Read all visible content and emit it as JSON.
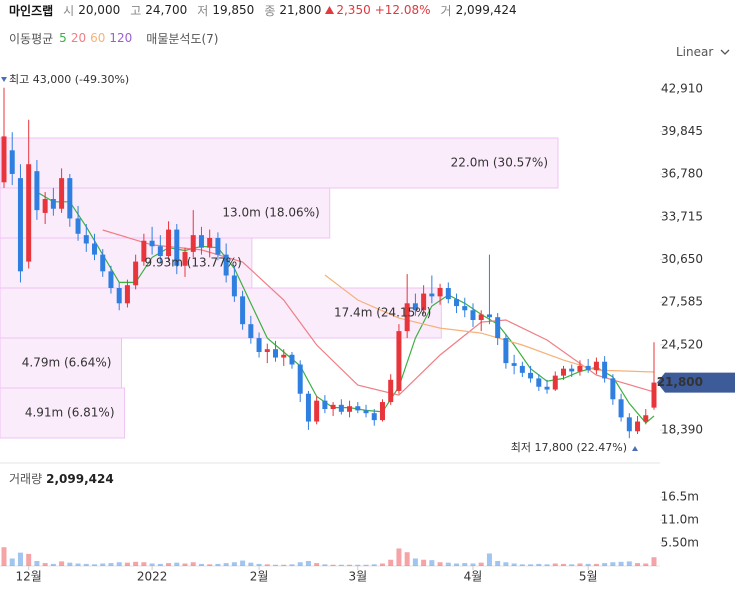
{
  "header": {
    "name": "마인즈랩",
    "open_label": "시",
    "open": "20,000",
    "high_label": "고",
    "high": "24,700",
    "low_label": "저",
    "low": "19,850",
    "close_label": "종",
    "close": "21,800",
    "change": "2,350",
    "change_pct": "+12.08%",
    "volume_label": "거",
    "volume": "2,099,424"
  },
  "ma_title": "이동평균",
  "profile_title": "매물분석도(7)",
  "scale_mode": "Linear",
  "chart_data": {
    "type": "candlestick",
    "ylim": [
      16090,
      44850
    ],
    "yticks": [
      {
        "value": 42910,
        "label": "42,910"
      },
      {
        "value": 39845,
        "label": "39,845"
      },
      {
        "value": 36780,
        "label": "36,780"
      },
      {
        "value": 33715,
        "label": "33,715"
      },
      {
        "value": 30650,
        "label": "30,650"
      },
      {
        "value": 27585,
        "label": "27,585"
      },
      {
        "value": 24520,
        "label": "24,520"
      },
      {
        "value": 18390,
        "label": "18,390"
      }
    ],
    "xlim": [
      0,
      79
    ],
    "xticks": [
      {
        "value": 3,
        "label": "12월"
      },
      {
        "value": 18,
        "label": "2022"
      },
      {
        "value": 31,
        "label": "2월"
      },
      {
        "value": 43,
        "label": "3월"
      },
      {
        "value": 57,
        "label": "4월"
      },
      {
        "value": 71,
        "label": "5월"
      }
    ],
    "up_color": "#e8343b",
    "down_color": "#2f7fe0",
    "candles": [
      [
        36200,
        43000,
        35800,
        39500
      ],
      [
        38500,
        39800,
        36000,
        36800
      ],
      [
        36500,
        37500,
        29000,
        29800
      ],
      [
        30500,
        40700,
        30000,
        37500
      ],
      [
        37000,
        37800,
        33500,
        34200
      ],
      [
        34000,
        35500,
        33200,
        35000
      ],
      [
        35000,
        35800,
        33800,
        34300
      ],
      [
        34300,
        37200,
        34000,
        36500
      ],
      [
        36500,
        36800,
        33000,
        33600
      ],
      [
        33600,
        34500,
        32000,
        32500
      ],
      [
        32400,
        33200,
        31200,
        31800
      ],
      [
        31800,
        32500,
        30600,
        31000
      ],
      [
        31000,
        31400,
        29400,
        29800
      ],
      [
        29800,
        30200,
        28200,
        28600
      ],
      [
        28600,
        29000,
        27000,
        27500
      ],
      [
        27500,
        29200,
        27200,
        28800
      ],
      [
        28800,
        31000,
        28500,
        30500
      ],
      [
        30500,
        32500,
        30200,
        32000
      ],
      [
        32000,
        33000,
        31000,
        31600
      ],
      [
        31600,
        32400,
        30400,
        30900
      ],
      [
        30900,
        33400,
        30600,
        32800
      ],
      [
        32800,
        33200,
        29600,
        30200
      ],
      [
        30200,
        31500,
        29400,
        31200
      ],
      [
        31200,
        34200,
        30800,
        32400
      ],
      [
        32400,
        33000,
        31000,
        31500
      ],
      [
        31500,
        32800,
        30800,
        32200
      ],
      [
        32200,
        32600,
        30600,
        31000
      ],
      [
        31000,
        31800,
        29000,
        29500
      ],
      [
        29500,
        30200,
        27600,
        28000
      ],
      [
        28000,
        28400,
        25600,
        26000
      ],
      [
        26000,
        26600,
        24600,
        25000
      ],
      [
        25000,
        25400,
        23600,
        24000
      ],
      [
        24000,
        24600,
        23200,
        24200
      ],
      [
        24200,
        24800,
        23300,
        23600
      ],
      [
        23600,
        24200,
        23000,
        23800
      ],
      [
        23800,
        24000,
        22800,
        23100
      ],
      [
        23100,
        23400,
        20400,
        21000
      ],
      [
        21000,
        21200,
        18400,
        19000
      ],
      [
        19000,
        20800,
        18800,
        20500
      ],
      [
        20500,
        20900,
        19600,
        19900
      ],
      [
        19900,
        20400,
        19400,
        20200
      ],
      [
        20200,
        20600,
        19500,
        19700
      ],
      [
        19700,
        20500,
        19300,
        20100
      ],
      [
        20100,
        20400,
        19600,
        19800
      ],
      [
        19800,
        20200,
        19300,
        19600
      ],
      [
        19600,
        19900,
        18700,
        19100
      ],
      [
        19100,
        20600,
        19000,
        20400
      ],
      [
        20400,
        22400,
        20200,
        22000
      ],
      [
        21200,
        26000,
        21000,
        25500
      ],
      [
        25500,
        29600,
        25000,
        27500
      ],
      [
        27500,
        28200,
        26600,
        27000
      ],
      [
        27000,
        28800,
        26700,
        28200
      ],
      [
        28200,
        29500,
        27500,
        28000
      ],
      [
        28000,
        28900,
        27400,
        28600
      ],
      [
        28600,
        29000,
        27500,
        27800
      ],
      [
        27800,
        28200,
        26800,
        27300
      ],
      [
        27300,
        27900,
        26500,
        27000
      ],
      [
        27000,
        27500,
        25800,
        26300
      ],
      [
        26300,
        27000,
        25500,
        26700
      ],
      [
        26700,
        31000,
        26000,
        26500
      ],
      [
        26500,
        26800,
        24500,
        25000
      ],
      [
        25000,
        25300,
        22800,
        23200
      ],
      [
        23200,
        23800,
        22400,
        23000
      ],
      [
        23000,
        23300,
        22200,
        22500
      ],
      [
        22500,
        23000,
        21800,
        22100
      ],
      [
        22100,
        22400,
        21200,
        21500
      ],
      [
        21500,
        22000,
        21000,
        21300
      ],
      [
        21300,
        22600,
        21200,
        22300
      ],
      [
        22300,
        23000,
        22000,
        22800
      ],
      [
        22800,
        23100,
        22200,
        22600
      ],
      [
        22600,
        23400,
        22300,
        23000
      ],
      [
        23000,
        23500,
        22500,
        22700
      ],
      [
        22700,
        23600,
        22400,
        23300
      ],
      [
        23300,
        23700,
        21800,
        22100
      ],
      [
        22100,
        22400,
        20200,
        20600
      ],
      [
        20600,
        21000,
        19000,
        19300
      ],
      [
        19300,
        19600,
        17800,
        18300
      ],
      [
        18300,
        19400,
        18100,
        19000
      ],
      [
        19000,
        19900,
        18800,
        19450
      ],
      [
        20000,
        24700,
        19850,
        21800
      ]
    ],
    "ma": {
      "series": [
        {
          "name": "5",
          "color": "#3cb043",
          "x": [
            4,
            6,
            8,
            10,
            12,
            14,
            16,
            18,
            20,
            22,
            24,
            26,
            28,
            30,
            32,
            34,
            36,
            38,
            40,
            42,
            44,
            46,
            48,
            50,
            52,
            54,
            56,
            58,
            60,
            62,
            64,
            66,
            68,
            70,
            72,
            74,
            76,
            78,
            79
          ],
          "values": [
            35500,
            34800,
            34800,
            33000,
            31000,
            29000,
            29000,
            30800,
            31500,
            31300,
            31600,
            31500,
            30000,
            27500,
            25000,
            24000,
            23000,
            20800,
            20000,
            20000,
            19800,
            19700,
            21500,
            25000,
            27300,
            28100,
            27500,
            26700,
            26000,
            24500,
            22800,
            21900,
            22100,
            22600,
            22900,
            22200,
            20300,
            18900,
            19400
          ]
        },
        {
          "name": "20",
          "color": "#f07e84",
          "x": [
            12,
            18,
            24,
            29,
            34,
            38,
            43,
            48,
            53,
            58,
            61,
            66,
            72,
            79
          ],
          "values": [
            32770,
            31700,
            31340,
            30470,
            27740,
            24500,
            21620,
            20900,
            23780,
            26150,
            26300,
            24860,
            22340,
            21130
          ]
        },
        {
          "name": "60",
          "color": "#f5b27a",
          "x": [
            39,
            43,
            48,
            53,
            58,
            63,
            68,
            72,
            79
          ],
          "values": [
            29535,
            27740,
            26440,
            25720,
            25360,
            24500,
            23420,
            22700,
            22560
          ]
        },
        {
          "name": "120",
          "color": "#9b5fd1",
          "x": [],
          "values": []
        }
      ]
    },
    "profile": {
      "bins": [
        17814,
        21410,
        25005,
        28601,
        32196,
        35791,
        39387
      ],
      "volumes": [
        4910000,
        4790000,
        17400000,
        9930000,
        13000000,
        22000000
      ],
      "value_labels": [
        "4.91m (6.81%)",
        "4.79m (6.64%)",
        "17.4m (24.15%)",
        "9.93m (13.77%)",
        "13.0m (18.06%)",
        "22.0m (30.57%)"
      ]
    },
    "high_label": "최고 43,000 (-49.30%)",
    "low_label": "최저 17,800 (22.47%)",
    "price_tag": {
      "value": 21800,
      "label": "21,800"
    },
    "volume_panel": {
      "title": "거래량",
      "value": "2,099,424",
      "ylim": [
        0,
        23000000
      ],
      "yticks": [
        {
          "value": 5500000,
          "label": "5.50m"
        },
        {
          "value": 11000000,
          "label": "11.0m"
        },
        {
          "value": 16500000,
          "label": "16.5m"
        }
      ],
      "values": [
        4500000,
        1800000,
        3200000,
        2900000,
        1200000,
        700000,
        500000,
        1100000,
        800000,
        600000,
        500000,
        400000,
        600000,
        700000,
        900000,
        800000,
        1000000,
        900000,
        600000,
        500000,
        700000,
        800000,
        600000,
        900000,
        500000,
        400000,
        500000,
        700000,
        900000,
        1300000,
        800000,
        500000,
        400000,
        300000,
        300000,
        400000,
        900000,
        1200000,
        700000,
        400000,
        300000,
        300000,
        300000,
        300000,
        300000,
        400000,
        600000,
        1500000,
        4200000,
        3300000,
        1800000,
        1500000,
        1400000,
        900000,
        800000,
        600000,
        700000,
        600000,
        800000,
        3000000,
        1200000,
        900000,
        600000,
        400000,
        400000,
        500000,
        400000,
        600000,
        500000,
        400000,
        600000,
        500000,
        500000,
        700000,
        900000,
        1000000,
        1100000,
        700000,
        600000,
        2099424
      ]
    }
  }
}
